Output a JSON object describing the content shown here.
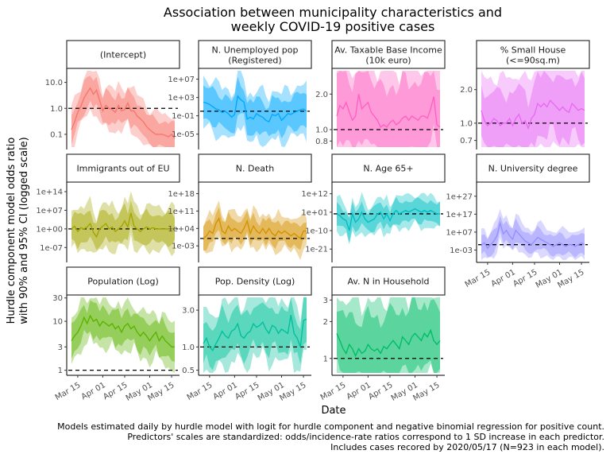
{
  "title": [
    "Association between municipality characteristics and",
    "weekly COVID-19 positive cases"
  ],
  "ylabel": [
    "Hurdle component model odds ratio",
    "with 90% and 95% CI (logged scale)"
  ],
  "xlabel": "Date",
  "x_ticks": [
    "Mar 15",
    "Apr 01",
    "Apr 15",
    "May 01",
    "May 15"
  ],
  "caption": [
    "Models estimated daily by hurdle model with logit for hurdle component and negative binomial regression for positive count.",
    "Predictors' scales are standardized: odds/incidence-rate ratios correspond to 1 SD increase in each predictor.",
    "Includes cases recored by 2020/05/17 (N=923 in each model)."
  ],
  "chart_data": {
    "type": "line",
    "x_dates": [
      "Mar 11",
      "Mar 13",
      "Mar 15",
      "Mar 17",
      "Mar 19",
      "Mar 21",
      "Mar 23",
      "Mar 25",
      "Mar 27",
      "Mar 29",
      "Mar 31",
      "Apr 02",
      "Apr 04",
      "Apr 06",
      "Apr 08",
      "Apr 10",
      "Apr 12",
      "Apr 14",
      "Apr 16",
      "Apr 18",
      "Apr 20",
      "Apr 22",
      "Apr 24",
      "Apr 26",
      "Apr 28",
      "Apr 30",
      "May 02",
      "May 04",
      "May 06",
      "May 08",
      "May 10",
      "May 12",
      "May 14",
      "May 16"
    ],
    "reference_line": 1.0,
    "panels": [
      {
        "name": "(Intercept)",
        "color": "#F8766D",
        "y_ticks": [
          "10.0",
          "1.0",
          "0.1"
        ],
        "y_tick_values": [
          10,
          1,
          0.1
        ],
        "ylim": [
          0.03,
          30
        ],
        "values": [
          0.15,
          0.3,
          0.7,
          1.2,
          2.5,
          4,
          6,
          3.5,
          5,
          2,
          0.8,
          1.3,
          1,
          0.9,
          0.7,
          1.3,
          0.8,
          0.9,
          1.6,
          0.8,
          0.8,
          0.5,
          0.4,
          0.3,
          0.2,
          0.15,
          0.12,
          0.1,
          0.1,
          0.1,
          0.09,
          0.08,
          0.1,
          0.07
        ],
        "ci_width": 0.6
      },
      {
        "name": "N. Unemployed pop (Registered)",
        "color": "#00A9FF",
        "y_ticks": [
          "1e+07",
          "1e+03",
          "1e-01",
          "1e-05"
        ],
        "y_tick_values": [
          10000000.0,
          1000.0,
          0.1,
          1e-05
        ],
        "ylim": [
          1e-08,
          1000000000.0
        ],
        "values": [
          100,
          60,
          30,
          10,
          3,
          2,
          0.5,
          1,
          0.3,
          0.05,
          0.2,
          2000,
          300,
          100,
          0.02,
          0.05,
          0.02,
          0.3,
          0.1,
          0.05,
          0.01,
          0.005,
          0.2,
          0.1,
          0.3,
          0.01,
          0.05,
          0.3,
          0.2,
          0.5,
          1,
          2,
          3,
          1
        ],
        "ci_width": 4
      },
      {
        "name": "Av. Taxable Base Income (10k euro)",
        "color": "#FF61C3",
        "y_ticks": [
          "2.0",
          "1.0",
          "0.8"
        ],
        "y_tick_values": [
          2,
          1,
          0.8
        ],
        "ylim": [
          0.7,
          3.2
        ],
        "values": [
          1.3,
          1.6,
          1.5,
          1.7,
          1.4,
          1.2,
          1.3,
          2.0,
          1.5,
          1.6,
          1.7,
          1.4,
          1.3,
          1.2,
          1.05,
          1.1,
          1.05,
          1.15,
          1.2,
          1.1,
          1.15,
          1.25,
          1.3,
          1.2,
          1.3,
          1.25,
          1.2,
          1.3,
          1.3,
          1.25,
          1.5,
          1.9,
          1.1,
          1.05
        ],
        "ci_width": 0.35
      },
      {
        "name": "% Small House (<=90sq.m)",
        "color": "#E76BF3",
        "y_ticks": [
          "2.0",
          "1.0",
          "0.7"
        ],
        "y_tick_values": [
          2,
          1,
          0.7
        ],
        "ylim": [
          0.6,
          3.0
        ],
        "values": [
          1.3,
          1.05,
          0.95,
          1.0,
          1.1,
          1.05,
          0.95,
          1.0,
          1.0,
          1.1,
          0.95,
          1.1,
          1.2,
          1.0,
          1.05,
          0.9,
          1.1,
          1.2,
          1.5,
          1.4,
          1.5,
          1.4,
          1.6,
          1.5,
          1.4,
          1.3,
          1.4,
          1.3,
          1.25,
          1.5,
          1.4,
          1.3,
          1.35,
          1.3
        ],
        "ci_width": 0.3
      },
      {
        "name": "Immigrants out of EU",
        "color": "#A3A500",
        "y_ticks": [
          "1e+14",
          "1e+07",
          "1e+00",
          "1e-07"
        ],
        "y_tick_values": [
          100000000000000.0,
          10000000.0,
          1,
          1e-07
        ],
        "ylim": [
          1e-12,
          1e+17
        ],
        "values": [
          1,
          10,
          0.1,
          3,
          1,
          5,
          100,
          0.05,
          0.001,
          1,
          10,
          100,
          1,
          5,
          0.1,
          1,
          10,
          1000,
          5,
          1000000.0,
          10,
          1,
          0.1,
          1,
          5,
          1,
          3,
          1,
          1,
          1,
          1,
          1,
          1,
          1
        ],
        "ci_width": 6
      },
      {
        "name": "N. Death",
        "color": "#D39200",
        "y_ticks": [
          "1e+18",
          "1e+11",
          "1e+04",
          "1e-03"
        ],
        "y_tick_values": [
          1e+18,
          100000000000.0,
          10000.0,
          0.001
        ],
        "ylim": [
          1e-09,
          1e+22
        ],
        "values": [
          1,
          10,
          1000,
          100,
          1000000.0,
          100000000.0,
          1000,
          100,
          100000.0,
          1000.0,
          10000.0,
          1000.0,
          100,
          10000.0,
          10000000.0,
          100,
          100000.0,
          1000.0,
          100,
          10000.0,
          100,
          10000.0,
          100,
          10,
          1000,
          100,
          1000,
          100,
          10,
          100,
          10,
          1,
          1000,
          1000.0
        ],
        "ci_width": 5
      },
      {
        "name": "N. Age 65+",
        "color": "#00BFC4",
        "y_ticks": [
          "1e+12",
          "1e+01",
          "1e-10",
          "1e-21"
        ],
        "y_tick_values": [
          1000000000000.0,
          10,
          1e-10,
          1e-21
        ],
        "ylim": [
          1e-28,
          1e+18
        ],
        "values": [
          1,
          0.1,
          0.001,
          0.0001,
          1e-10,
          1,
          1e-05,
          0.001,
          10,
          0.001,
          1e-05,
          0.0001,
          0.001,
          1,
          10,
          0.001,
          1,
          0.0001,
          1,
          100,
          1,
          10,
          100,
          10,
          100,
          1000,
          100,
          10,
          100,
          10,
          100,
          10,
          1,
          1
        ],
        "ci_width": 7
      },
      {
        "name": "N. University degree",
        "color": "#9590FF",
        "y_ticks": [
          "1e+27",
          "1e+17",
          "1e+07",
          "1e-03"
        ],
        "y_tick_values": [
          1e+27,
          1e+17,
          10000000.0,
          0.001
        ],
        "ylim": [
          1e-09,
          1e+34
        ],
        "values": [
          1,
          10,
          0.01,
          1,
          100,
          100000.0,
          1000000000000.0,
          1000000.0,
          100000000.0,
          100000.0,
          1000.0,
          100000000.0,
          1000000.0,
          10000.0,
          100,
          10,
          1,
          100,
          10000.0,
          1000.0,
          100,
          10,
          1,
          0.1,
          1,
          10,
          1,
          0.1,
          1,
          1,
          0.1,
          1,
          10,
          1
        ],
        "ci_width": 6
      },
      {
        "name": "Population (Log)",
        "color": "#5BB300",
        "y_ticks": [
          "30",
          "10",
          "3",
          "1"
        ],
        "y_tick_values": [
          30,
          10,
          3,
          1
        ],
        "ylim": [
          0.85,
          32
        ],
        "values": [
          4,
          5,
          6,
          8,
          12,
          9,
          13,
          10,
          11,
          8,
          10,
          9,
          8,
          9,
          7,
          8,
          6,
          8,
          9,
          7,
          8,
          6,
          5,
          6,
          5,
          4,
          5,
          6,
          4,
          5,
          4,
          3.5,
          3,
          3
        ],
        "ci_width": 0.35
      },
      {
        "name": "Pop. Density (Log)",
        "color": "#00C19A",
        "y_ticks": [
          "3.0",
          "1.0",
          "0.5"
        ],
        "y_tick_values": [
          3,
          1,
          0.5
        ],
        "ylim": [
          0.45,
          4.5
        ],
        "values": [
          1.1,
          1.3,
          1.0,
          0.9,
          1.1,
          1.3,
          1.6,
          1.4,
          1.3,
          1.6,
          1.7,
          2.0,
          1.4,
          1.3,
          1.5,
          1.6,
          2.0,
          1.8,
          1.9,
          2.1,
          1.7,
          1.5,
          1.9,
          1.8,
          1.5,
          1.7,
          1.6,
          1.5,
          2.6,
          1.5,
          1.3,
          1.0,
          2.2,
          2.3
        ],
        "ci_width": 0.3
      },
      {
        "name": "Av. N in Household",
        "color": "#00BE67",
        "y_ticks": [
          "3",
          "2",
          "1"
        ],
        "y_tick_values": [
          3,
          2,
          1
        ],
        "ylim": [
          0.75,
          3.2
        ],
        "values": [
          1.6,
          1.4,
          1.2,
          1.1,
          1.3,
          1.2,
          1.05,
          1.2,
          1.1,
          1.15,
          1.3,
          1.2,
          1.15,
          1.2,
          1.1,
          1.25,
          1.2,
          1.3,
          1.4,
          1.3,
          1.2,
          1.5,
          1.4,
          1.3,
          1.5,
          1.6,
          1.5,
          1.4,
          1.6,
          1.5,
          1.7,
          1.4,
          1.3,
          1.4
        ],
        "ci_width": 0.3
      }
    ]
  }
}
